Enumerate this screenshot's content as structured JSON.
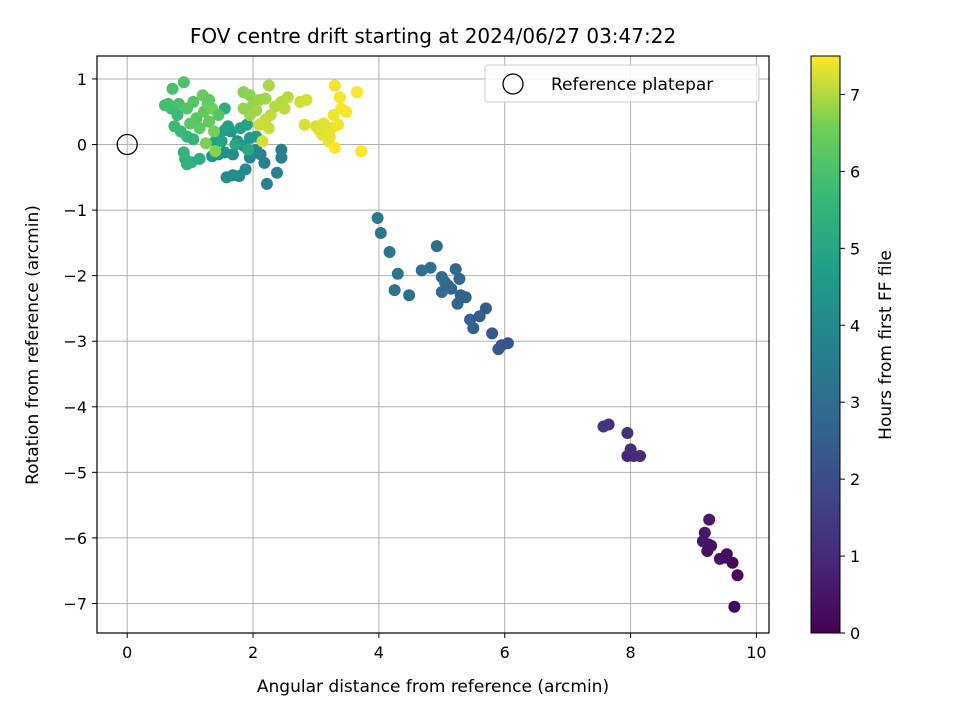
{
  "chart_data": {
    "type": "scatter",
    "title": "FOV centre drift starting at 2024/06/27 03:47:22",
    "xlabel": "Angular distance from reference (arcmin)",
    "ylabel": "Rotation from reference (arcmin)",
    "xlim": [
      -0.48,
      10.2
    ],
    "ylim": [
      -7.45,
      1.35
    ],
    "xticks": [
      0,
      2,
      4,
      6,
      8,
      10
    ],
    "yticks": [
      1,
      0,
      -1,
      -2,
      -3,
      -4,
      -5,
      -6,
      -7
    ],
    "grid": true,
    "colormap": "viridis",
    "colorbar": {
      "label": "Hours from first FF file",
      "min": 0,
      "max": 7.5,
      "ticks": [
        0,
        1,
        2,
        3,
        4,
        5,
        6,
        7
      ]
    },
    "legend": {
      "position": "top-right",
      "entries": [
        {
          "label": "Reference platepar",
          "marker": "open-circle"
        }
      ]
    },
    "reference_point": {
      "x": 0,
      "y": 0
    },
    "points": [
      [
        9.65,
        -7.05,
        0.05
      ],
      [
        9.7,
        -6.57,
        0.15
      ],
      [
        9.62,
        -6.38,
        0.2
      ],
      [
        9.5,
        -6.3,
        0.25
      ],
      [
        9.53,
        -6.25,
        0.3
      ],
      [
        9.42,
        -6.32,
        0.35
      ],
      [
        9.22,
        -6.2,
        0.4
      ],
      [
        9.24,
        -6.1,
        0.45
      ],
      [
        9.15,
        -6.05,
        0.5
      ],
      [
        9.18,
        -5.92,
        0.55
      ],
      [
        9.25,
        -5.72,
        0.6
      ],
      [
        9.28,
        -6.12,
        0.42
      ],
      [
        7.95,
        -4.75,
        0.9
      ],
      [
        8.05,
        -4.75,
        0.95
      ],
      [
        8.15,
        -4.75,
        1.0
      ],
      [
        8.0,
        -4.65,
        1.05
      ],
      [
        7.95,
        -4.4,
        1.1
      ],
      [
        7.65,
        -4.27,
        1.2
      ],
      [
        7.57,
        -4.3,
        1.3
      ],
      [
        6.05,
        -3.03,
        2.2
      ],
      [
        5.95,
        -3.06,
        2.25
      ],
      [
        5.9,
        -3.12,
        2.3
      ],
      [
        5.8,
        -2.88,
        2.35
      ],
      [
        5.7,
        -2.5,
        2.4
      ],
      [
        5.6,
        -2.62,
        2.45
      ],
      [
        5.5,
        -2.8,
        2.5
      ],
      [
        5.45,
        -2.67,
        2.55
      ],
      [
        5.38,
        -2.33,
        2.6
      ],
      [
        5.3,
        -2.3,
        2.65
      ],
      [
        5.25,
        -2.43,
        2.7
      ],
      [
        5.28,
        -2.05,
        2.75
      ],
      [
        5.22,
        -1.9,
        2.8
      ],
      [
        5.15,
        -2.2,
        2.85
      ],
      [
        5.1,
        -2.15,
        2.9
      ],
      [
        5.05,
        -2.1,
        2.95
      ],
      [
        5.0,
        -2.25,
        3.0
      ],
      [
        5.0,
        -2.02,
        3.02
      ],
      [
        4.92,
        -1.55,
        3.05
      ],
      [
        4.82,
        -1.88,
        3.1
      ],
      [
        4.68,
        -1.92,
        3.15
      ],
      [
        4.48,
        -2.3,
        3.2
      ],
      [
        4.25,
        -2.22,
        3.25
      ],
      [
        4.3,
        -1.97,
        3.3
      ],
      [
        4.17,
        -1.64,
        3.35
      ],
      [
        4.03,
        -1.35,
        3.4
      ],
      [
        3.98,
        -1.12,
        3.45
      ],
      [
        2.45,
        -0.08,
        3.6
      ],
      [
        2.45,
        -0.2,
        3.65
      ],
      [
        2.38,
        -0.43,
        3.7
      ],
      [
        2.22,
        -0.6,
        3.75
      ],
      [
        2.18,
        -0.28,
        3.8
      ],
      [
        2.12,
        -0.15,
        3.85
      ],
      [
        2.05,
        -0.08,
        3.9
      ],
      [
        1.95,
        -0.2,
        3.95
      ],
      [
        1.88,
        -0.38,
        4.0
      ],
      [
        1.78,
        -0.48,
        4.05
      ],
      [
        1.68,
        -0.47,
        4.1
      ],
      [
        1.58,
        -0.5,
        4.15
      ],
      [
        1.68,
        -0.15,
        4.2
      ],
      [
        1.55,
        -0.12,
        4.25
      ],
      [
        1.45,
        -0.15,
        4.3
      ],
      [
        1.35,
        -0.18,
        4.35
      ],
      [
        1.75,
        0.05,
        4.4
      ],
      [
        1.85,
        -0.02,
        4.45
      ],
      [
        1.95,
        0.1,
        4.5
      ],
      [
        2.05,
        0.12,
        4.55
      ],
      [
        1.65,
        0.2,
        4.6
      ],
      [
        1.55,
        0.22,
        4.65
      ],
      [
        1.45,
        0.15,
        4.7
      ],
      [
        1.4,
        0.05,
        4.75
      ],
      [
        1.6,
        0.28,
        4.8
      ],
      [
        1.8,
        0.25,
        4.85
      ],
      [
        1.9,
        0.3,
        4.9
      ],
      [
        1.72,
        0.0,
        4.95
      ],
      [
        1.5,
        0.05,
        5.0
      ],
      [
        1.92,
        -0.08,
        5.05
      ],
      [
        1.15,
        -0.22,
        5.3
      ],
      [
        1.02,
        -0.27,
        5.35
      ],
      [
        0.95,
        -0.3,
        5.4
      ],
      [
        0.92,
        -0.22,
        5.45
      ],
      [
        0.9,
        -0.12,
        5.5
      ],
      [
        1.05,
        0.08,
        5.55
      ],
      [
        0.95,
        0.12,
        5.6
      ],
      [
        0.85,
        0.2,
        5.65
      ],
      [
        0.75,
        0.28,
        5.7
      ],
      [
        0.8,
        0.45,
        5.75
      ],
      [
        0.7,
        0.55,
        5.8
      ],
      [
        0.6,
        0.6,
        5.85
      ],
      [
        0.65,
        0.62,
        5.9
      ],
      [
        0.72,
        0.85,
        5.95
      ],
      [
        0.82,
        0.62,
        6.0
      ],
      [
        0.9,
        0.95,
        6.05
      ],
      [
        0.95,
        0.55,
        6.1
      ],
      [
        1.05,
        0.65,
        6.15
      ],
      [
        1.1,
        0.4,
        6.2
      ],
      [
        1.0,
        0.32,
        6.25
      ],
      [
        1.15,
        0.25,
        6.3
      ],
      [
        1.22,
        0.5,
        6.35
      ],
      [
        1.3,
        0.35,
        6.4
      ],
      [
        1.2,
        0.75,
        6.45
      ],
      [
        1.28,
        0.62,
        6.5
      ],
      [
        1.35,
        0.55,
        6.55
      ],
      [
        1.38,
        0.2,
        6.6
      ],
      [
        1.25,
        0.02,
        6.65
      ],
      [
        1.4,
        -0.1,
        6.7
      ],
      [
        1.55,
        0.55,
        5.2
      ],
      [
        1.45,
        0.45,
        6.2
      ],
      [
        1.3,
        0.68,
        6.3
      ],
      [
        1.85,
        0.8,
        6.7
      ],
      [
        1.95,
        0.75,
        6.75
      ],
      [
        2.0,
        0.6,
        6.8
      ],
      [
        2.1,
        0.68,
        6.85
      ],
      [
        2.2,
        0.7,
        6.9
      ],
      [
        2.25,
        0.9,
        6.95
      ],
      [
        2.35,
        0.58,
        7.0
      ],
      [
        2.45,
        0.65,
        7.02
      ],
      [
        2.55,
        0.72,
        7.05
      ],
      [
        2.5,
        0.55,
        7.07
      ],
      [
        2.28,
        0.45,
        7.1
      ],
      [
        2.2,
        0.38,
        7.12
      ],
      [
        2.25,
        0.25,
        7.15
      ],
      [
        2.1,
        0.3,
        7.18
      ],
      [
        2.15,
        0.05,
        7.2
      ],
      [
        2.05,
        0.52,
        6.9
      ],
      [
        1.95,
        0.45,
        6.85
      ],
      [
        1.85,
        0.55,
        6.8
      ],
      [
        2.75,
        0.65,
        7.2
      ],
      [
        2.85,
        0.68,
        7.22
      ],
      [
        2.82,
        0.3,
        7.25
      ],
      [
        3.0,
        0.28,
        7.28
      ],
      [
        3.12,
        0.32,
        7.3
      ],
      [
        3.18,
        0.2,
        7.32
      ],
      [
        3.25,
        0.25,
        7.34
      ],
      [
        3.1,
        0.15,
        7.36
      ],
      [
        3.2,
        0.05,
        7.38
      ],
      [
        3.28,
        0.45,
        7.4
      ],
      [
        3.35,
        0.3,
        7.42
      ],
      [
        3.3,
        0.9,
        7.44
      ],
      [
        3.38,
        0.72,
        7.46
      ],
      [
        3.4,
        0.55,
        7.47
      ],
      [
        3.48,
        0.5,
        7.48
      ],
      [
        3.65,
        0.8,
        7.49
      ],
      [
        3.3,
        -0.05,
        7.49
      ],
      [
        3.72,
        -0.1,
        7.5
      ],
      [
        3.05,
        0.22,
        7.3
      ],
      [
        3.22,
        0.12,
        7.35
      ]
    ]
  }
}
